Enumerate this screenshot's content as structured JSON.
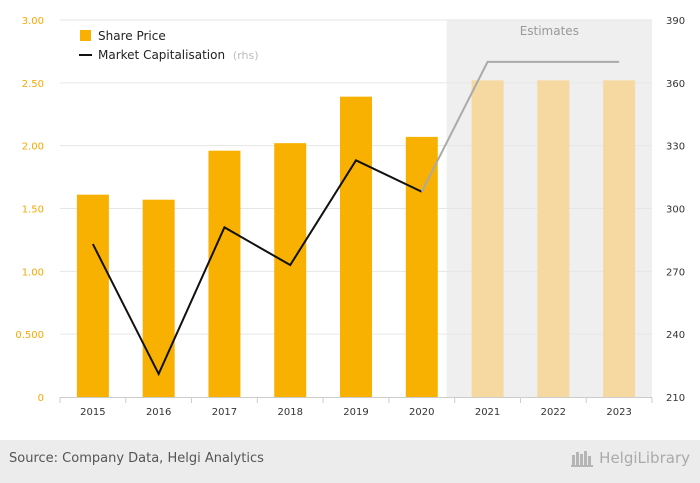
{
  "chart_data": {
    "type": "bar",
    "categories": [
      "2015",
      "2016",
      "2017",
      "2018",
      "2019",
      "2020",
      "2021",
      "2022",
      "2023"
    ],
    "series": [
      {
        "name": "Share Price",
        "kind": "bar",
        "axis": "left",
        "values": [
          1.61,
          1.57,
          1.96,
          2.02,
          2.39,
          2.07,
          2.52,
          2.52,
          2.52
        ]
      },
      {
        "name": "Market Capitalisation",
        "legend_suffix": "(rhs)",
        "kind": "line",
        "axis": "right",
        "values": [
          283,
          221,
          291,
          273,
          323,
          308,
          370,
          370,
          370
        ]
      }
    ],
    "estimate_from": "2021",
    "estimate_label": "Estimates",
    "y_left": {
      "min": 0,
      "max": 3.0,
      "ticks": [
        "0",
        "0.500",
        "1.00",
        "1.50",
        "2.00",
        "2.50",
        "3.00"
      ]
    },
    "y_right": {
      "min": 210,
      "max": 390,
      "ticks": [
        "210",
        "240",
        "270",
        "300",
        "330",
        "360",
        "390"
      ]
    },
    "grid": true,
    "legend_position": "top-left",
    "colors": {
      "bar": "#f8b100",
      "bar_estimate": "#f5d9a0",
      "line": "#111111",
      "line_estimate": "#aaaaaa",
      "estimate_bg": "#efefef",
      "grid": "#e6e6e6"
    }
  },
  "footer": {
    "source": "Source: Company Data, Helgi Analytics",
    "brand": "HelgiLibrary"
  }
}
